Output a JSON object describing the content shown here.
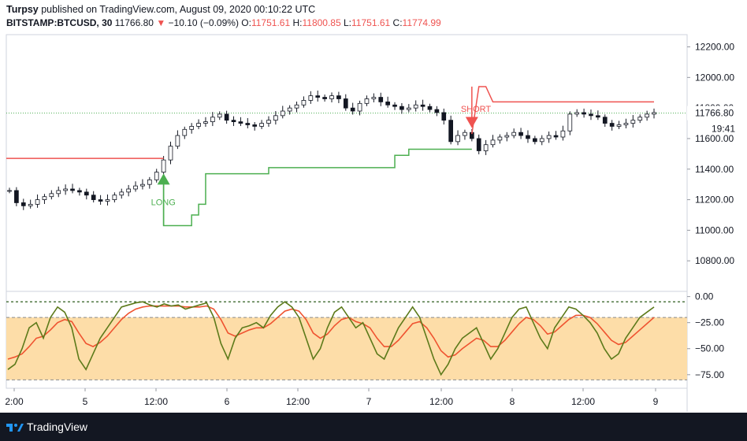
{
  "header": {
    "publisher": "Turpsy",
    "published_text": "published on TradingView.com, August 09, 2020 00:10:22 UTC",
    "symbol": "BITSTAMP:BTCUSD, 30",
    "last": "11766.80",
    "change": "−10.10 (−0.09%)",
    "o_label": "O:",
    "o": "11751.61",
    "h_label": "H:",
    "h": "11800.85",
    "l_label": "L:",
    "l": "11751.61",
    "c_label": "C:",
    "c": "11774.99"
  },
  "footer": {
    "brand": "TradingView"
  },
  "colors": {
    "up": "#131722",
    "stop_long": "#4caf50",
    "stop_short": "#ef5350",
    "osc": "#5c7a1a",
    "signal": "#ef5330",
    "zone": "#fddda8"
  },
  "chart_data": {
    "type": "line",
    "price_axis": {
      "ticks": [
        10800,
        11000,
        11200,
        11400,
        11600,
        11800,
        12000,
        12200
      ],
      "tick_labels": [
        "10800.00",
        "11000.00",
        "11200.00",
        "11400.00",
        "11600.00",
        "11800.00",
        "12000.00",
        "12200.00"
      ],
      "range": [
        10600,
        12280
      ]
    },
    "last_price_label": "11766.80",
    "countdown": "19:41",
    "x_ticks": [
      "2:00",
      "5",
      "12:00",
      "6",
      "12:00",
      "7",
      "12:00",
      "8",
      "12:00",
      "9"
    ],
    "price_series": [
      11260,
      11180,
      11160,
      11170,
      11200,
      11220,
      11240,
      11260,
      11270,
      11260,
      11250,
      11230,
      11200,
      11190,
      11200,
      11230,
      11250,
      11270,
      11290,
      11300,
      11330,
      11380,
      11460,
      11550,
      11620,
      11660,
      11680,
      11700,
      11710,
      11740,
      11760,
      11720,
      11710,
      11700,
      11690,
      11680,
      11700,
      11720,
      11750,
      11780,
      11800,
      11820,
      11850,
      11880,
      11870,
      11860,
      11880,
      11860,
      11800,
      11780,
      11830,
      11860,
      11870,
      11840,
      11820,
      11810,
      11790,
      11800,
      11820,
      11810,
      11790,
      11770,
      11720,
      11580,
      11620,
      11640,
      11600,
      11520,
      11560,
      11590,
      11610,
      11620,
      11640,
      11620,
      11600,
      11580,
      11600,
      11620,
      11610,
      11650,
      11760,
      11770,
      11760,
      11750,
      11740,
      11700,
      11680,
      11690,
      11700,
      11720,
      11740,
      11760,
      11770
    ],
    "long_stop": [
      11470,
      11470,
      11470,
      11470,
      11470,
      11470,
      11470,
      11470,
      11470,
      11470,
      11470,
      11470,
      11470,
      11470,
      11470,
      11470,
      11470,
      11470,
      11470,
      11470,
      11470,
      11470,
      11470,
      11470
    ],
    "signals": [
      {
        "label": "LONG",
        "price": 11340,
        "index": 22
      },
      {
        "label": "SHORT",
        "price": 11700,
        "index": 66
      }
    ],
    "oscillator": {
      "ticks": [
        0,
        -25,
        -50,
        -75
      ],
      "tick_labels": [
        "0.00",
        "−25.00",
        "−50.00",
        "−75.00"
      ],
      "levels": [
        -5,
        -20,
        -80
      ],
      "range": [
        -88,
        5
      ]
    },
    "osc_values": [
      -70,
      -65,
      -50,
      -30,
      -25,
      -40,
      -20,
      -10,
      -15,
      -30,
      -60,
      -70,
      -55,
      -40,
      -30,
      -20,
      -10,
      -8,
      -6,
      -5,
      -8,
      -10,
      -7,
      -9,
      -8,
      -12,
      -10,
      -8,
      -6,
      -20,
      -45,
      -60,
      -40,
      -30,
      -28,
      -25,
      -30,
      -18,
      -10,
      -5,
      -10,
      -20,
      -40,
      -60,
      -50,
      -30,
      -15,
      -10,
      -20,
      -30,
      -25,
      -40,
      -55,
      -60,
      -45,
      -30,
      -20,
      -10,
      -20,
      -40,
      -60,
      -75,
      -65,
      -50,
      -40,
      -35,
      -30,
      -45,
      -60,
      -50,
      -35,
      -20,
      -12,
      -10,
      -25,
      -40,
      -50,
      -30,
      -20,
      -10,
      -12,
      -18,
      -25,
      -35,
      -50,
      -60,
      -55,
      -40,
      -30,
      -20,
      -15,
      -10
    ],
    "signal_values": [
      -60,
      -58,
      -55,
      -48,
      -40,
      -38,
      -32,
      -25,
      -22,
      -24,
      -35,
      -45,
      -48,
      -44,
      -38,
      -30,
      -22,
      -16,
      -12,
      -10,
      -9,
      -9,
      -9,
      -9,
      -9,
      -10,
      -10,
      -10,
      -9,
      -12,
      -22,
      -35,
      -38,
      -35,
      -32,
      -30,
      -30,
      -26,
      -20,
      -14,
      -12,
      -14,
      -22,
      -35,
      -40,
      -36,
      -28,
      -22,
      -20,
      -24,
      -26,
      -30,
      -40,
      -48,
      -48,
      -42,
      -34,
      -26,
      -24,
      -30,
      -40,
      -52,
      -58,
      -56,
      -50,
      -45,
      -40,
      -42,
      -48,
      -48,
      -42,
      -34,
      -26,
      -20,
      -22,
      -28,
      -36,
      -34,
      -28,
      -22,
      -18,
      -18,
      -20,
      -26,
      -34,
      -42,
      -46,
      -44,
      -38,
      -32,
      -26,
      -20
    ]
  }
}
